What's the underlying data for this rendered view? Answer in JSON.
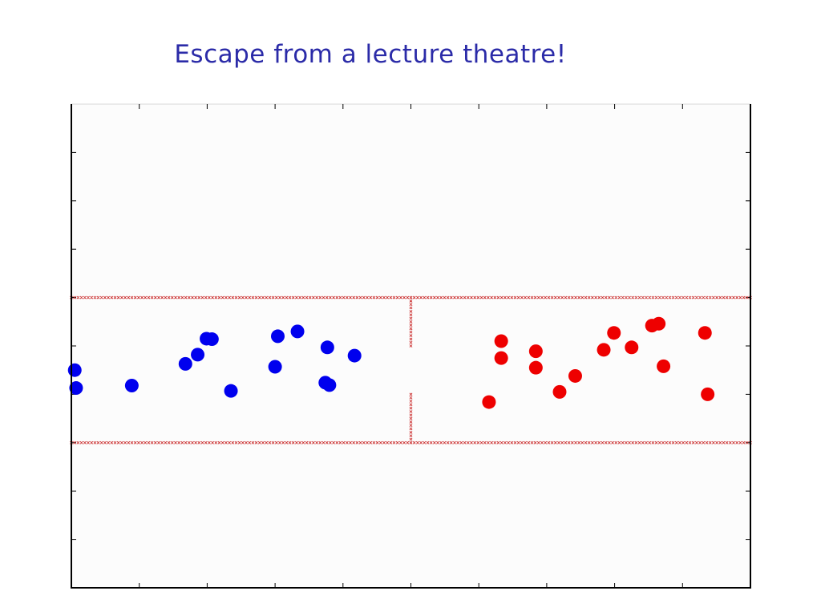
{
  "slide": {
    "title": "Escape from a lecture theatre!"
  },
  "chart_data": {
    "type": "scatter",
    "title": "",
    "xlabel": "",
    "ylabel": "",
    "xlim": [
      0,
      10
    ],
    "ylim": [
      0,
      10
    ],
    "xticks": [
      1,
      2,
      3,
      4,
      5,
      6,
      7,
      8,
      9
    ],
    "yticks": [
      1,
      2,
      3,
      4,
      5,
      6,
      7,
      8,
      9
    ],
    "tick_labels_shown": false,
    "grid": false,
    "colors": {
      "blue": "#0000ee",
      "red": "#ee0000",
      "wall": "#cc3333",
      "axes": "#000000",
      "background": "#fcfcfc"
    },
    "walls": [
      {
        "name": "upper-wall",
        "x": [
          0,
          10
        ],
        "y": [
          6,
          6
        ]
      },
      {
        "name": "lower-wall",
        "x": [
          0,
          10
        ],
        "y": [
          3,
          3
        ]
      },
      {
        "name": "partition-upper",
        "x": [
          5,
          5
        ],
        "y": [
          5,
          6
        ]
      },
      {
        "name": "partition-lower",
        "x": [
          5,
          5
        ],
        "y": [
          3,
          4
        ]
      }
    ],
    "series": [
      {
        "color": "blue",
        "points": [
          [
            0.05,
            4.5
          ],
          [
            0.07,
            4.13
          ],
          [
            0.89,
            4.18
          ],
          [
            1.68,
            4.63
          ],
          [
            1.86,
            4.82
          ],
          [
            1.99,
            5.15
          ],
          [
            2.07,
            5.14
          ],
          [
            2.35,
            4.07
          ],
          [
            3.0,
            4.57
          ],
          [
            3.04,
            5.2
          ],
          [
            3.33,
            5.3
          ],
          [
            3.74,
            4.24
          ],
          [
            3.8,
            4.19
          ],
          [
            3.77,
            4.97
          ],
          [
            4.17,
            4.8
          ]
        ]
      },
      {
        "color": "red",
        "points": [
          [
            6.15,
            3.84
          ],
          [
            6.33,
            4.75
          ],
          [
            6.33,
            5.1
          ],
          [
            6.84,
            4.55
          ],
          [
            6.84,
            4.89
          ],
          [
            7.19,
            4.05
          ],
          [
            7.42,
            4.38
          ],
          [
            7.84,
            4.92
          ],
          [
            7.99,
            5.27
          ],
          [
            8.25,
            4.97
          ],
          [
            8.55,
            5.42
          ],
          [
            8.65,
            5.46
          ],
          [
            8.72,
            4.58
          ],
          [
            9.33,
            5.27
          ],
          [
            9.37,
            4.0
          ]
        ]
      }
    ]
  }
}
